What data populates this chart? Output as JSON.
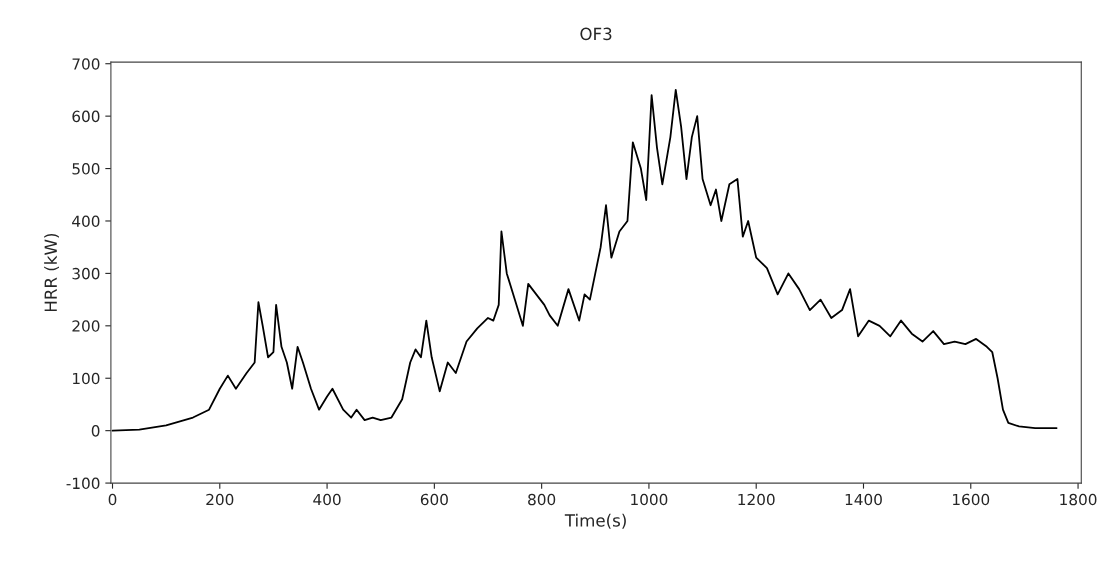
{
  "chart_data": {
    "type": "line",
    "title": "OF3",
    "xlabel": "Time(s)",
    "ylabel": "HRR (kW)",
    "xlim": [
      -3,
      1806
    ],
    "ylim": [
      -100,
      703
    ],
    "xticks": [
      0,
      200,
      400,
      600,
      800,
      1000,
      1200,
      1400,
      1600,
      1800
    ],
    "yticks": [
      -100,
      0,
      100,
      200,
      300,
      400,
      500,
      600,
      700
    ],
    "grid": false,
    "marker": "none",
    "line_style": "solid",
    "series": [
      {
        "color": "#000000",
        "x": [
          0,
          50,
          100,
          150,
          180,
          200,
          215,
          230,
          250,
          265,
          272,
          280,
          290,
          300,
          305,
          315,
          325,
          335,
          345,
          355,
          370,
          385,
          400,
          410,
          430,
          445,
          455,
          470,
          485,
          500,
          520,
          540,
          555,
          565,
          575,
          585,
          595,
          610,
          625,
          640,
          660,
          680,
          700,
          710,
          720,
          725,
          735,
          750,
          765,
          775,
          790,
          805,
          815,
          830,
          850,
          870,
          880,
          890,
          900,
          910,
          920,
          930,
          945,
          960,
          970,
          985,
          995,
          1005,
          1015,
          1025,
          1040,
          1050,
          1060,
          1070,
          1080,
          1090,
          1100,
          1115,
          1125,
          1135,
          1150,
          1165,
          1175,
          1185,
          1200,
          1220,
          1240,
          1260,
          1280,
          1300,
          1320,
          1340,
          1360,
          1375,
          1390,
          1410,
          1430,
          1450,
          1470,
          1490,
          1510,
          1530,
          1550,
          1570,
          1590,
          1610,
          1630,
          1640,
          1650,
          1660,
          1670,
          1690,
          1720,
          1760
        ],
        "values": [
          0,
          2,
          10,
          25,
          40,
          80,
          105,
          80,
          110,
          130,
          245,
          200,
          140,
          150,
          240,
          160,
          130,
          80,
          160,
          130,
          80,
          40,
          65,
          80,
          40,
          25,
          40,
          20,
          25,
          20,
          25,
          60,
          130,
          155,
          140,
          210,
          140,
          75,
          130,
          110,
          170,
          195,
          215,
          210,
          240,
          380,
          300,
          250,
          200,
          280,
          260,
          240,
          220,
          200,
          270,
          210,
          260,
          250,
          300,
          350,
          430,
          330,
          380,
          400,
          550,
          500,
          440,
          640,
          540,
          470,
          560,
          650,
          580,
          480,
          560,
          600,
          480,
          430,
          460,
          400,
          470,
          480,
          370,
          400,
          330,
          310,
          260,
          300,
          270,
          230,
          250,
          215,
          230,
          270,
          180,
          210,
          200,
          180,
          210,
          185,
          170,
          190,
          165,
          170,
          165,
          175,
          160,
          150,
          100,
          40,
          15,
          8,
          5,
          5
        ]
      }
    ]
  }
}
